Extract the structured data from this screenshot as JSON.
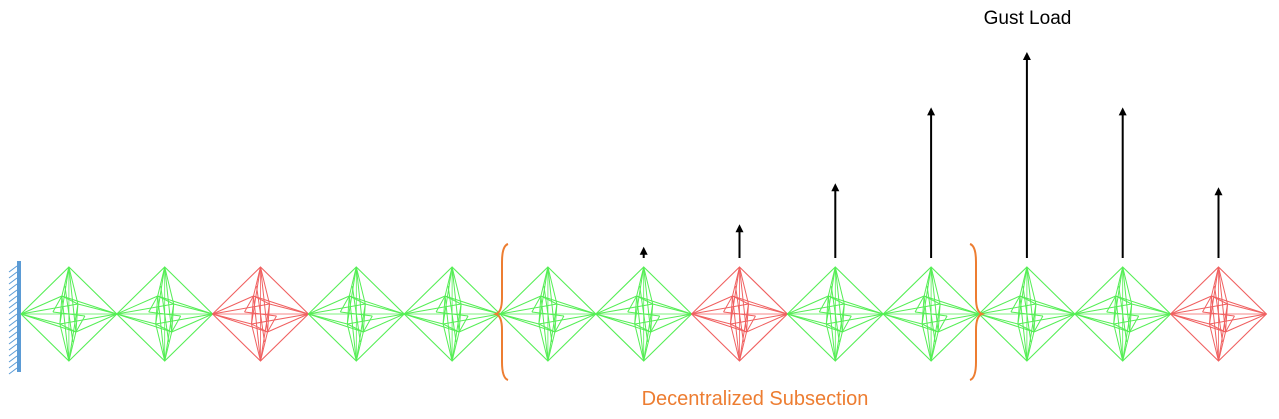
{
  "colors": {
    "healthy_cell": "#55ee55",
    "failed_cell": "#f06060",
    "wall": "#5b9bd5",
    "brace": "#ed7d31",
    "arrow": "#000000",
    "label_accent": "#ed7d31"
  },
  "labels": {
    "gust_load": "Gust Load",
    "subsection": "Decentralized Subsection"
  },
  "cells": [
    {
      "index": 1,
      "status": "healthy"
    },
    {
      "index": 2,
      "status": "healthy"
    },
    {
      "index": 3,
      "status": "failed"
    },
    {
      "index": 4,
      "status": "healthy"
    },
    {
      "index": 5,
      "status": "healthy"
    },
    {
      "index": 6,
      "status": "healthy"
    },
    {
      "index": 7,
      "status": "healthy"
    },
    {
      "index": 8,
      "status": "failed"
    },
    {
      "index": 9,
      "status": "healthy"
    },
    {
      "index": 10,
      "status": "healthy"
    },
    {
      "index": 11,
      "status": "healthy"
    },
    {
      "index": 12,
      "status": "healthy"
    },
    {
      "index": 13,
      "status": "failed"
    }
  ],
  "gust_magnitudes": [
    {
      "cell": 7,
      "relative": 0.05
    },
    {
      "cell": 8,
      "relative": 0.16
    },
    {
      "cell": 9,
      "relative": 0.36
    },
    {
      "cell": 10,
      "relative": 0.73
    },
    {
      "cell": 11,
      "relative": 1.0
    },
    {
      "cell": 12,
      "relative": 0.73
    },
    {
      "cell": 13,
      "relative": 0.34
    }
  ],
  "subsection_range": {
    "first_cell": 6,
    "last_cell": 10
  }
}
